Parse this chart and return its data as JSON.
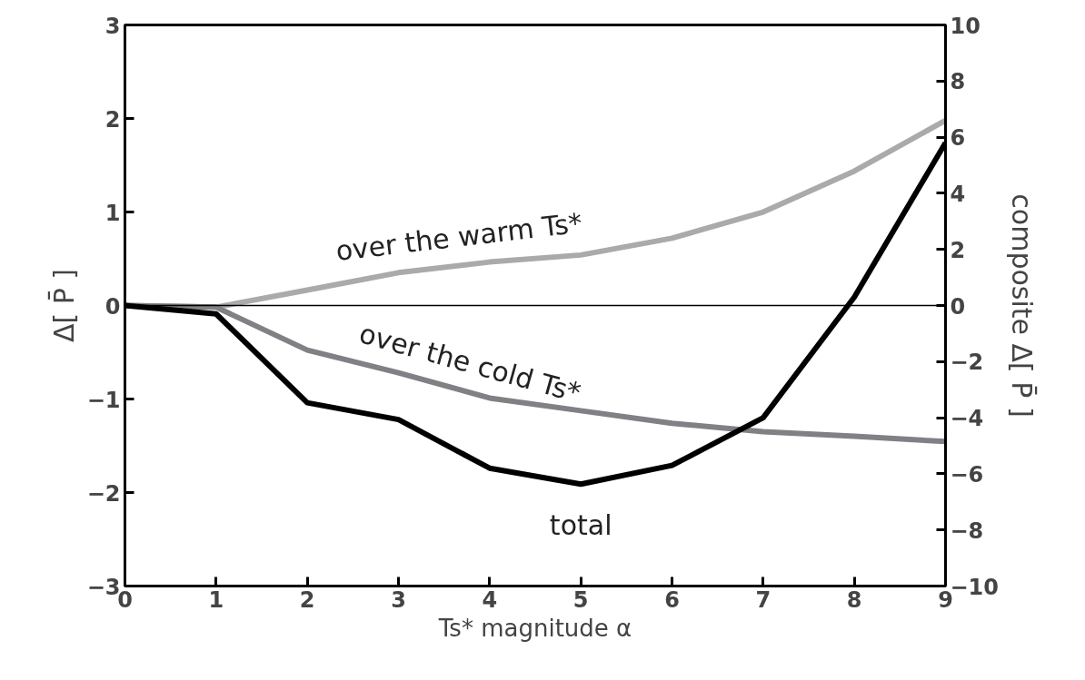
{
  "chart_data": {
    "type": "line",
    "xlabel": "Ts* magnitude α",
    "ylabel": "Δ[ P̄ ]",
    "y2label": "composite Δ[ P̄ ]",
    "x": [
      0,
      1,
      2,
      3,
      4,
      5,
      6,
      7,
      8,
      9
    ],
    "xlim": [
      0,
      9
    ],
    "xticks": [
      0,
      1,
      2,
      3,
      4,
      5,
      6,
      7,
      8,
      9
    ],
    "ylim": [
      -3,
      3
    ],
    "yticks": [
      -3,
      -2,
      -1,
      0,
      1,
      2,
      3
    ],
    "y2lim": [
      -10,
      10
    ],
    "y2ticks": [
      -10,
      -8,
      -6,
      -4,
      -2,
      0,
      2,
      4,
      6,
      8,
      10
    ],
    "series": [
      {
        "name": "over the warm Ts*",
        "color": "#aaaaaa",
        "axis": "y2",
        "values": [
          0,
          -0.06,
          0.55,
          1.17,
          1.55,
          1.8,
          2.4,
          3.33,
          4.79,
          6.6
        ]
      },
      {
        "name": "over the cold Ts*",
        "color": "#808085",
        "axis": "y2",
        "values": [
          0,
          -0.06,
          -1.59,
          -2.4,
          -3.3,
          -3.75,
          -4.2,
          -4.5,
          -4.66,
          -4.85
        ]
      },
      {
        "name": "total",
        "color": "#000000",
        "values": [
          0,
          -0.09,
          -1.04,
          -1.22,
          -1.74,
          -1.91,
          -1.71,
          -1.2,
          0.09,
          1.74
        ]
      }
    ],
    "ref_lines": [
      {
        "axis": "y",
        "value": 0,
        "color": "#000000"
      }
    ],
    "grid": false,
    "marker": "none",
    "line_style": "solid"
  }
}
